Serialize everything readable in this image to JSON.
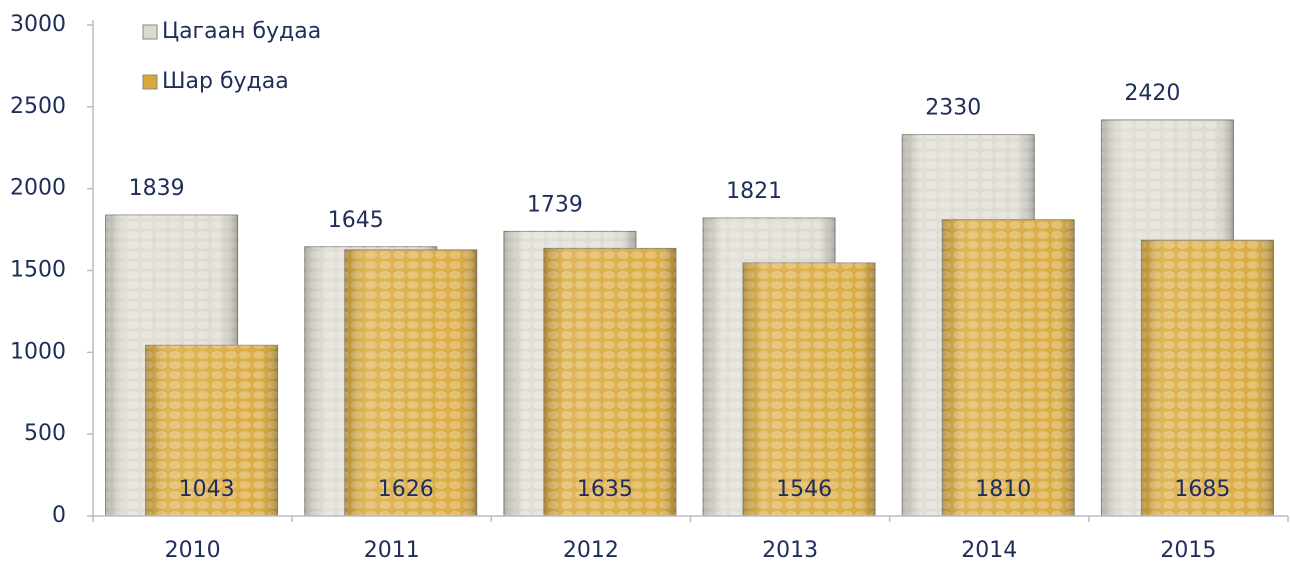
{
  "chart_data": {
    "type": "bar",
    "categories": [
      "2010",
      "2011",
      "2012",
      "2013",
      "2014",
      "2015"
    ],
    "series": [
      {
        "name": "Цагаан будаа",
        "color": "#dcd9cf",
        "values": [
          1839,
          1645,
          1739,
          1821,
          2330,
          2420
        ]
      },
      {
        "name": "Шар будаа",
        "color": "#d9a83a",
        "values": [
          1043,
          1626,
          1635,
          1546,
          1810,
          1685
        ]
      }
    ],
    "ylim": [
      0,
      3000
    ],
    "yticks": [
      0,
      500,
      1000,
      1500,
      2000,
      2500,
      3000
    ],
    "grid": false,
    "legend": "top-left"
  }
}
